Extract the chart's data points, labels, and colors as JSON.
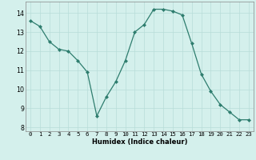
{
  "x": [
    0,
    1,
    2,
    3,
    4,
    5,
    6,
    7,
    8,
    9,
    10,
    11,
    12,
    13,
    14,
    15,
    16,
    17,
    18,
    19,
    20,
    21,
    22,
    23
  ],
  "y": [
    13.6,
    13.3,
    12.5,
    12.1,
    12.0,
    11.5,
    10.9,
    8.6,
    9.6,
    10.4,
    11.5,
    13.0,
    13.4,
    14.2,
    14.2,
    14.1,
    13.9,
    12.4,
    10.8,
    9.9,
    9.2,
    8.8,
    8.4,
    8.4
  ],
  "xlabel": "Humidex (Indice chaleur)",
  "bg_color": "#d4f0ec",
  "line_color": "#2e7d6e",
  "marker_color": "#2e7d6e",
  "grid_color": "#b8ddd8",
  "ylim_min": 7.8,
  "ylim_max": 14.6,
  "yticks": [
    8,
    9,
    10,
    11,
    12,
    13,
    14
  ],
  "xticks": [
    0,
    1,
    2,
    3,
    4,
    5,
    6,
    7,
    8,
    9,
    10,
    11,
    12,
    13,
    14,
    15,
    16,
    17,
    18,
    19,
    20,
    21,
    22,
    23
  ],
  "xlabel_fontsize": 6.0,
  "tick_fontsize": 5.2,
  "linewidth": 0.9,
  "markersize": 2.0
}
